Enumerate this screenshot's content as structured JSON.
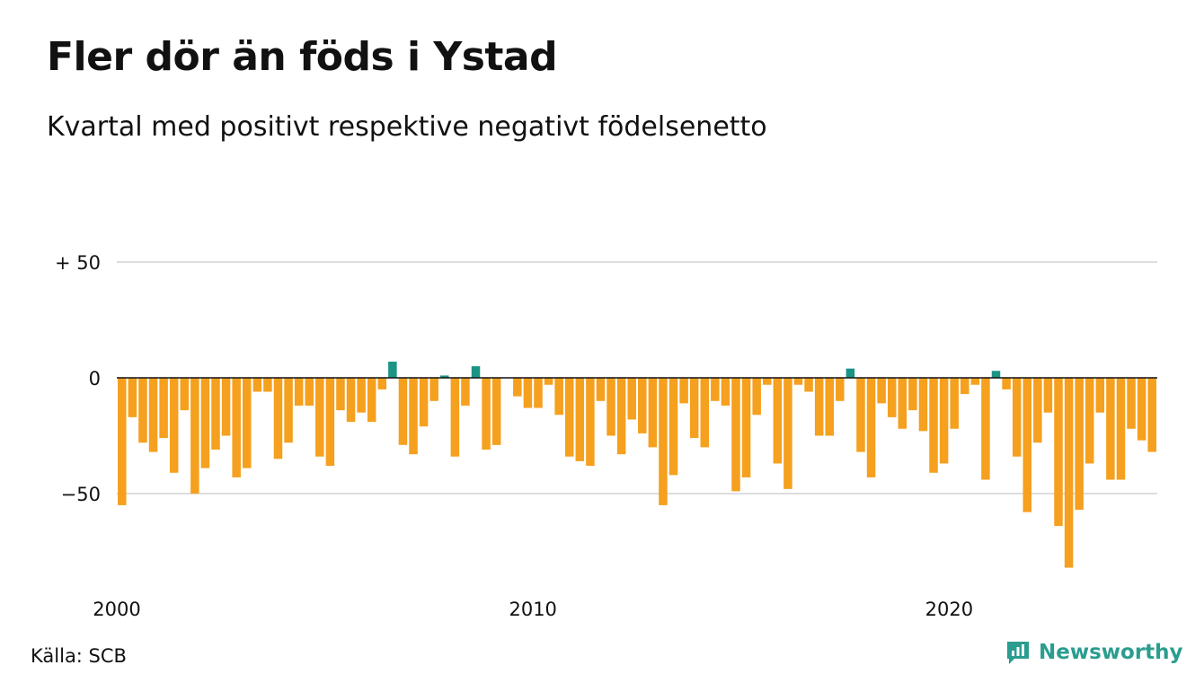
{
  "title": "Fler dör än föds i Ystad",
  "subtitle": "Kvartal med positivt respektive negativt födelsenetto",
  "source": "Källa: SCB",
  "brand": "Newsworthy",
  "colors": {
    "negative": "#F5A01E",
    "positive": "#1A9485",
    "grid": "#dddddd",
    "zero_line": "#111111",
    "brand": "#2a9d8f"
  },
  "chart_data": {
    "type": "bar",
    "x_start": "2000 Q1",
    "x_end": "2024 Q4",
    "xticks": [
      {
        "label": "2000",
        "index": 0
      },
      {
        "label": "2010",
        "index": 40
      },
      {
        "label": "2020",
        "index": 80
      }
    ],
    "yticks": [
      {
        "value": 50,
        "label": "+ 50"
      },
      {
        "value": 0,
        "label": "0"
      },
      {
        "value": -50,
        "label": "−50"
      }
    ],
    "ylim": [
      -85,
      50
    ],
    "grid": true,
    "values": [
      -55,
      -17,
      -28,
      -32,
      -26,
      -41,
      -14,
      -50,
      -39,
      -31,
      -25,
      -43,
      -39,
      -6,
      -6,
      -35,
      -28,
      -12,
      -12,
      -34,
      -38,
      -14,
      -19,
      -15,
      -19,
      -5,
      7,
      -29,
      -33,
      -21,
      -10,
      1,
      -34,
      -12,
      5,
      -31,
      -29,
      0,
      -8,
      -13,
      -13,
      -3,
      -16,
      -34,
      -36,
      -38,
      -10,
      -25,
      -33,
      -18,
      -24,
      -30,
      -55,
      -42,
      -11,
      -26,
      -30,
      -10,
      -12,
      -49,
      -43,
      -16,
      -3,
      -37,
      -48,
      -3,
      -6,
      -25,
      -25,
      -10,
      4,
      -32,
      -43,
      -11,
      -17,
      -22,
      -14,
      -23,
      -41,
      -37,
      -22,
      -7,
      -3,
      -44,
      3,
      -5,
      -34,
      -58,
      -28,
      -15,
      -64,
      -82,
      -57,
      -37,
      -15,
      -44,
      -44,
      -22,
      -27,
      -32
    ]
  }
}
